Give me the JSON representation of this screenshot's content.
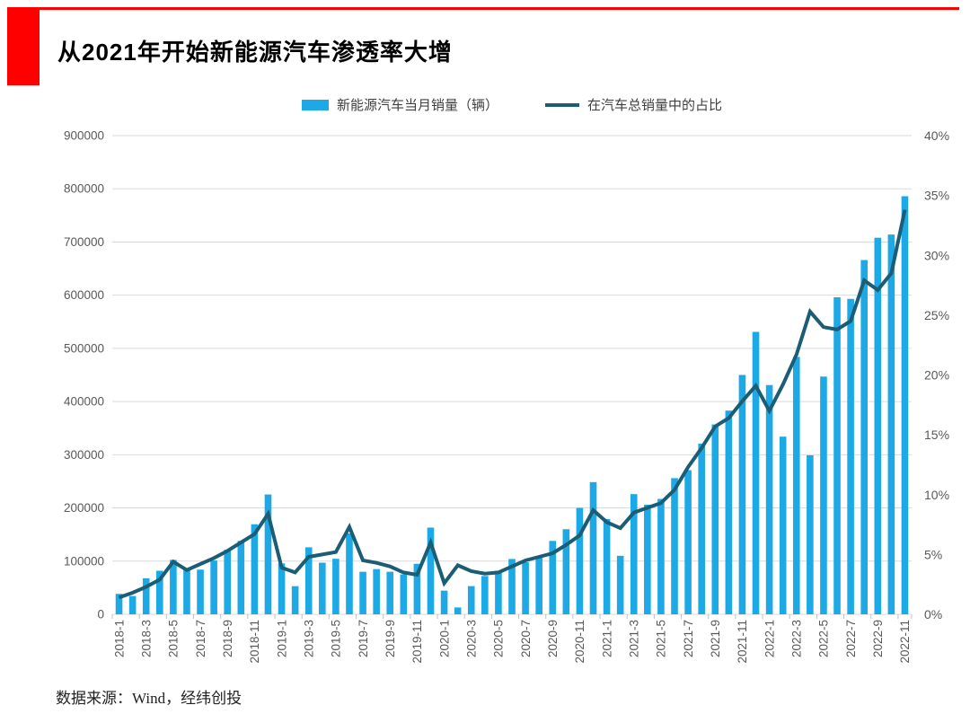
{
  "header": {
    "title": "从2021年开始新能源汽车渗透率大增"
  },
  "legend": [
    {
      "label": "新能源汽车当月销量（辆）",
      "type": "bar",
      "color": "#1CA9E5"
    },
    {
      "label": "在汽车总销量中的占比",
      "type": "line",
      "color": "#1B5D74"
    }
  ],
  "footer": {
    "source": "数据来源：Wind，经纬创投"
  },
  "colors": {
    "accent_red": "#FF0000",
    "bar": "#1CA9E5",
    "line": "#1B5D74",
    "grid": "#DADADA",
    "axis_text": "#595959",
    "tick": "#C0C0C0"
  },
  "chart_data": {
    "type": "bar+line combo",
    "title": "从2021年开始新能源汽车渗透率大增",
    "categories": [
      "2018-1",
      "2018-2",
      "2018-3",
      "2018-4",
      "2018-5",
      "2018-6",
      "2018-7",
      "2018-8",
      "2018-9",
      "2018-10",
      "2018-11",
      "2018-12",
      "2019-1",
      "2019-2",
      "2019-3",
      "2019-4",
      "2019-5",
      "2019-6",
      "2019-7",
      "2019-8",
      "2019-9",
      "2019-10",
      "2019-11",
      "2019-12",
      "2020-1",
      "2020-2",
      "2020-3",
      "2020-4",
      "2020-5",
      "2020-6",
      "2020-7",
      "2020-8",
      "2020-9",
      "2020-10",
      "2020-11",
      "2020-12",
      "2021-1",
      "2021-2",
      "2021-3",
      "2021-4",
      "2021-5",
      "2021-6",
      "2021-7",
      "2021-8",
      "2021-9",
      "2021-10",
      "2021-11",
      "2021-12",
      "2022-1",
      "2022-2",
      "2022-3",
      "2022-4",
      "2022-5",
      "2022-6",
      "2022-7",
      "2022-8",
      "2022-9",
      "2022-10",
      "2022-11"
    ],
    "series": [
      {
        "name": "新能源汽车当月销量（辆）",
        "type": "bar",
        "axis": "left",
        "color": "#1CA9E5",
        "values": [
          38470,
          34420,
          67778,
          81904,
          102400,
          84200,
          84000,
          101200,
          121200,
          138000,
          169300,
          225300,
          95700,
          52900,
          126000,
          97000,
          104400,
          152000,
          80000,
          85000,
          80000,
          75000,
          95000,
          163000,
          44500,
          12900,
          53000,
          72000,
          82000,
          104000,
          98000,
          109000,
          138000,
          160000,
          200000,
          248500,
          179000,
          110000,
          226000,
          206000,
          217000,
          256000,
          271000,
          321000,
          357000,
          383000,
          450000,
          531000,
          431000,
          334000,
          484000,
          299000,
          447000,
          596000,
          593000,
          666000,
          708000,
          714000,
          786000
        ]
      },
      {
        "name": "在汽车总销量中的占比",
        "type": "line",
        "axis": "right",
        "color": "#1B5D74",
        "values": [
          1.4,
          1.8,
          2.3,
          2.9,
          4.4,
          3.7,
          4.2,
          4.7,
          5.3,
          6.0,
          6.7,
          8.4,
          3.9,
          3.5,
          4.8,
          5.0,
          5.2,
          7.3,
          4.5,
          4.3,
          4.0,
          3.5,
          3.3,
          6.0,
          2.6,
          4.1,
          3.6,
          3.4,
          3.5,
          4.0,
          4.5,
          4.8,
          5.1,
          5.8,
          6.6,
          8.7,
          7.7,
          7.2,
          8.5,
          8.9,
          9.3,
          10.4,
          12.3,
          13.9,
          15.7,
          16.4,
          17.8,
          19.1,
          17.0,
          19.2,
          21.7,
          25.3,
          24.0,
          23.8,
          24.5,
          27.9,
          27.1,
          28.5,
          33.8
        ]
      }
    ],
    "left_axis": {
      "min": 0,
      "max": 900000,
      "step": 100000,
      "tick_labels": [
        "0",
        "100000",
        "200000",
        "300000",
        "400000",
        "500000",
        "600000",
        "700000",
        "800000",
        "900000"
      ]
    },
    "right_axis": {
      "min": 0,
      "max": 40,
      "step": 5,
      "tick_labels": [
        "0%",
        "5%",
        "10%",
        "15%",
        "20%",
        "25%",
        "30%",
        "35%",
        "40%"
      ]
    },
    "x_tick_every": 2,
    "x_tick_labels": [
      "2018-1",
      "2018-3",
      "2018-5",
      "2018-7",
      "2018-9",
      "2018-11",
      "2019-1",
      "2019-3",
      "2019-5",
      "2019-7",
      "2019-9",
      "2019-11",
      "2020-1",
      "2020-3",
      "2020-5",
      "2020-7",
      "2020-9",
      "2020-11",
      "2021-1",
      "2021-3",
      "2021-5",
      "2021-7",
      "2021-9",
      "2021-11",
      "2022-1",
      "2022-3",
      "2022-5",
      "2022-7",
      "2022-9",
      "2022-11"
    ],
    "grid": true,
    "legend_position": "top"
  }
}
